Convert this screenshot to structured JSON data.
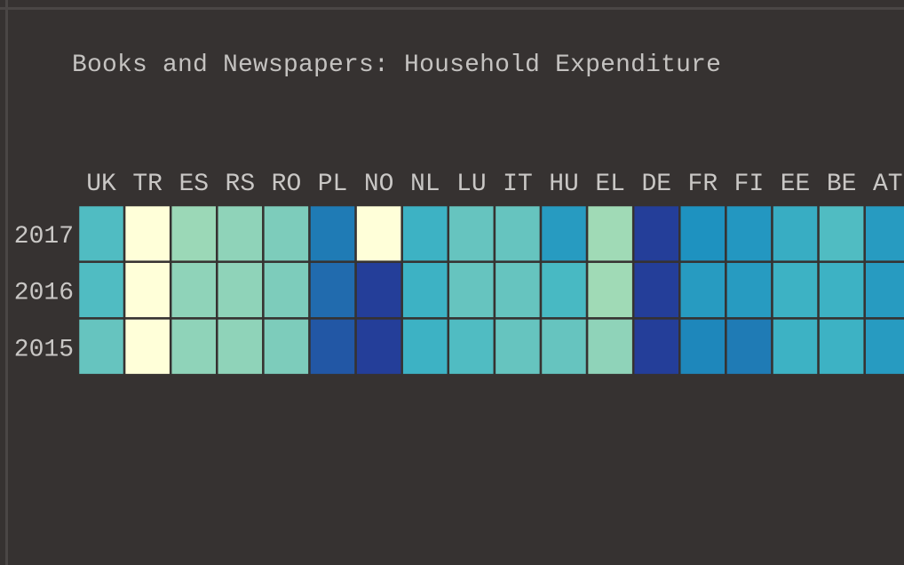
{
  "chart_data": {
    "type": "heatmap",
    "title": "Books and Newspapers: Household Expenditure",
    "columns": [
      "UK",
      "TR",
      "ES",
      "RS",
      "RO",
      "PL",
      "NO",
      "NL",
      "LU",
      "IT",
      "HU",
      "EL",
      "DE",
      "FR",
      "FI",
      "EE",
      "BE",
      "AT"
    ],
    "rows": [
      "2017",
      "2016",
      "2015"
    ],
    "values": [
      [
        0.46,
        0.0,
        0.22,
        0.27,
        0.34,
        0.74,
        0.0,
        0.52,
        0.4,
        0.4,
        0.62,
        0.2,
        0.96,
        0.66,
        0.64,
        0.54,
        0.46,
        0.62
      ],
      [
        0.46,
        0.0,
        0.27,
        0.27,
        0.34,
        0.79,
        0.96,
        0.52,
        0.4,
        0.4,
        0.48,
        0.2,
        0.96,
        0.62,
        0.62,
        0.52,
        0.52,
        0.62
      ],
      [
        0.4,
        0.0,
        0.27,
        0.27,
        0.34,
        0.86,
        0.96,
        0.52,
        0.46,
        0.4,
        0.4,
        0.27,
        0.96,
        0.7,
        0.74,
        0.52,
        0.52,
        0.62
      ]
    ],
    "colormap": [
      "#ffffd9",
      "#a8ddb5",
      "#7fcdbb",
      "#41b6c4",
      "#1d91c0",
      "#225ea8",
      "#253494"
    ],
    "grid_color": "#363231"
  }
}
